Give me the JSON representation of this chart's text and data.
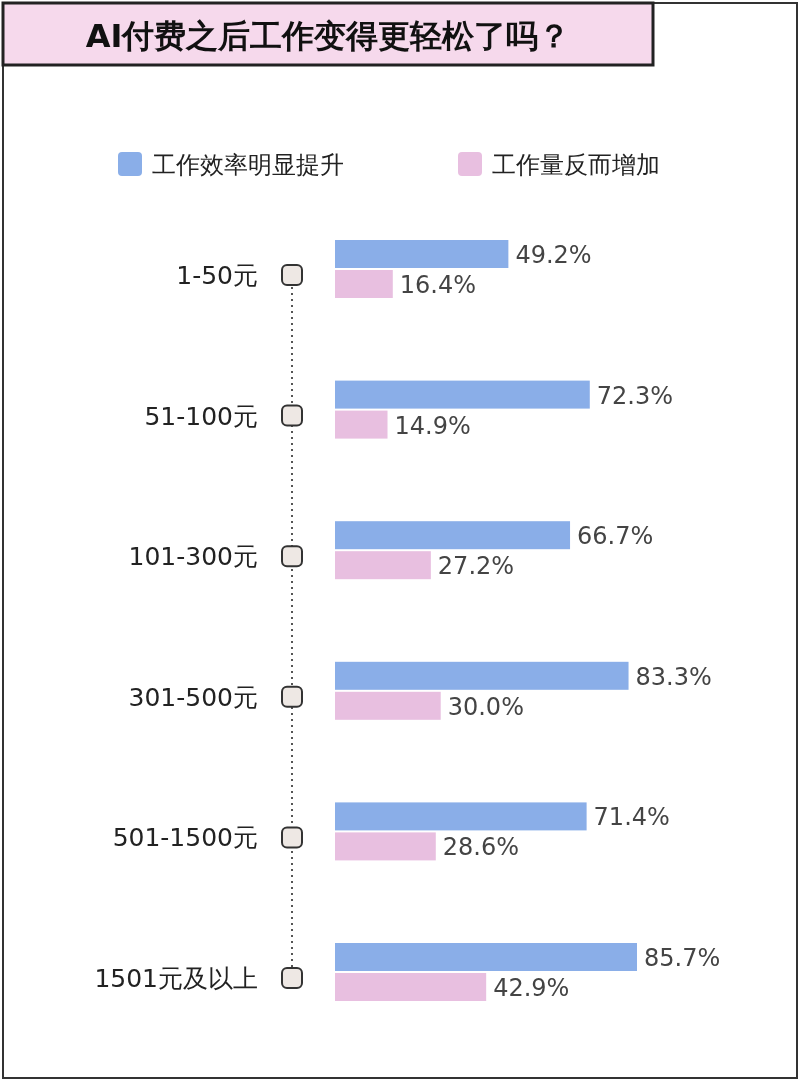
{
  "chart_data": {
    "type": "bar",
    "orientation": "horizontal",
    "title": "AI付费之后工作变得更轻松了吗？",
    "legend": "top",
    "categories": [
      "1-50元",
      "51-100元",
      "101-300元",
      "301-500元",
      "501-1500元",
      "1501元及以上"
    ],
    "series": [
      {
        "name": "工作效率明显提升",
        "color": "#8aaee8",
        "values": [
          49.2,
          72.3,
          66.7,
          83.3,
          71.4,
          85.7
        ],
        "value_labels": [
          "49.2%",
          "72.3%",
          "66.7%",
          "83.3%",
          "71.4%",
          "85.7%"
        ]
      },
      {
        "name": "工作量反而增加",
        "color": "#e8bfe0",
        "values": [
          16.4,
          14.9,
          27.2,
          30.0,
          28.6,
          42.9
        ],
        "value_labels": [
          "16.4%",
          "14.9%",
          "27.2%",
          "30.0%",
          "28.6%",
          "42.9%"
        ]
      }
    ]
  }
}
